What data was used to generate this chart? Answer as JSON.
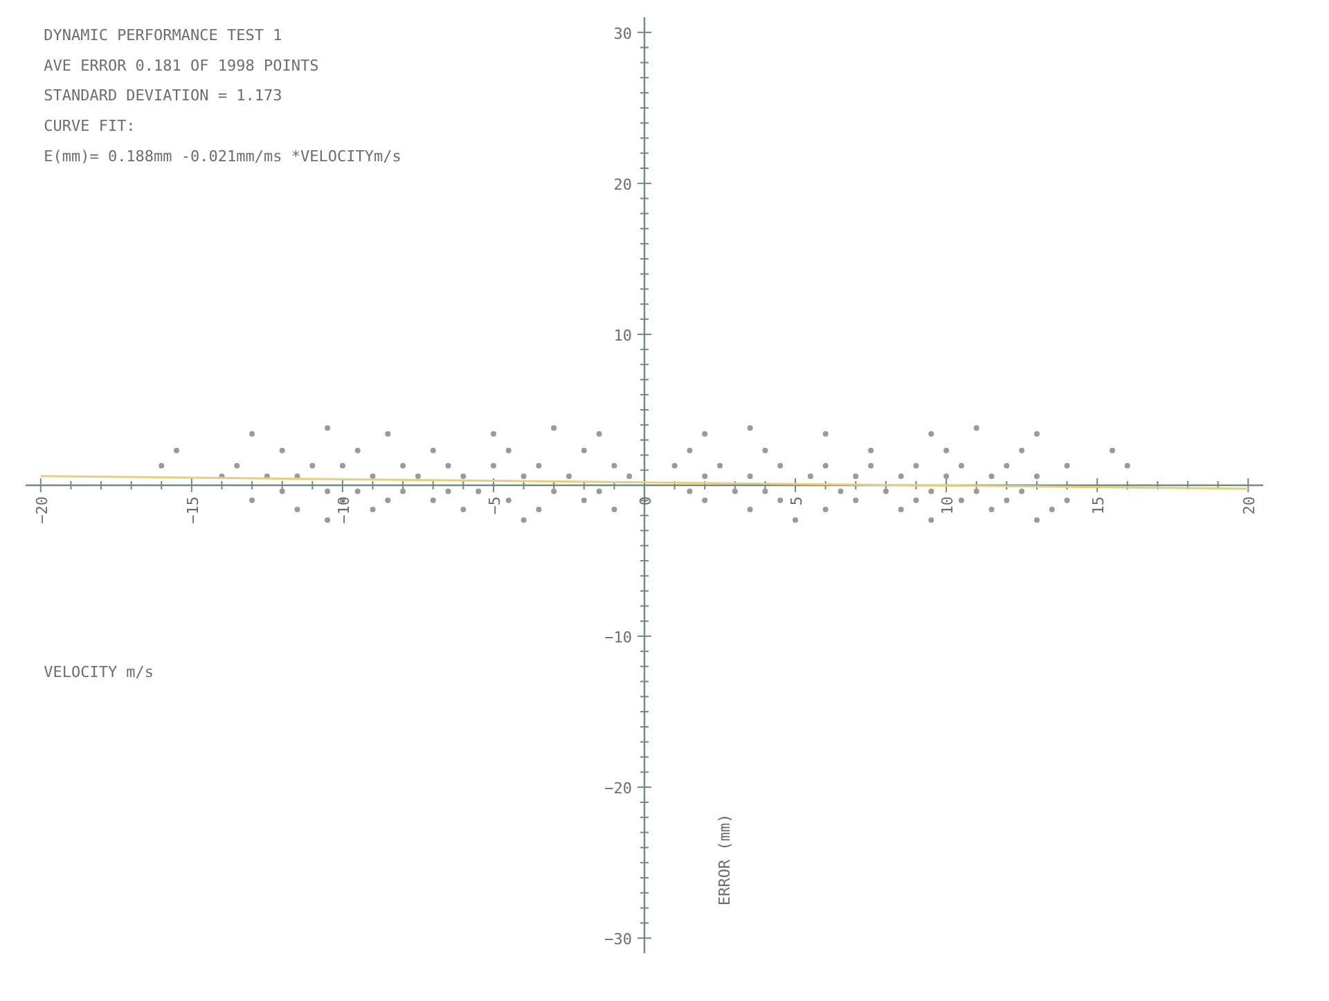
{
  "chart_data": {
    "type": "scatter",
    "title": "DYNAMIC PERFORMANCE TEST 1",
    "annotations": [
      "AVE ERROR  0.181 OF 1998 POINTS",
      "STANDARD DEVIATION = 1.173",
      "CURVE FIT:",
      "E(mm)= 0.188mm -0.021mm/ms  *VELOCITYm/s"
    ],
    "xlabel": "VELOCITY   m/s",
    "ylabel": "ERROR (mm)",
    "xlim": [
      -20.5,
      20.5
    ],
    "ylim": [
      -31,
      31
    ],
    "xticks": [
      -20,
      -15,
      -10,
      -5,
      0,
      5,
      10,
      15,
      20
    ],
    "yticks": [
      -30,
      -20,
      -10,
      {
        "value": 0,
        "label": null
      },
      10,
      20,
      30
    ],
    "grid": false,
    "series": [
      {
        "color": "#9a9a9a",
        "marker": "circle",
        "x": [
          -15.5,
          -12,
          -9.5,
          -7,
          -4.5,
          -2,
          1.5,
          4,
          7.5,
          10,
          12.5,
          15.5,
          -13,
          -8.5,
          -5,
          -1.5,
          2,
          6,
          9.5,
          13,
          -10.5,
          -3,
          3.5,
          11,
          -16,
          -13.5,
          -11,
          -10,
          -8,
          -6.5,
          -5,
          -3.5,
          -1,
          1,
          2.5,
          4.5,
          6,
          7.5,
          9,
          10.5,
          12,
          14,
          16,
          -14,
          -12.5,
          -11.5,
          -9,
          -7.5,
          -6,
          -4,
          -2.5,
          -0.5,
          2,
          3.5,
          5.5,
          7,
          8.5,
          10,
          11.5,
          13,
          -12,
          -10.5,
          -9.5,
          -8,
          -6.5,
          -5.5,
          -3,
          -1.5,
          1.5,
          3,
          4,
          6.5,
          8,
          9.5,
          11,
          12.5,
          -13,
          -10,
          -8.5,
          -7,
          -4.5,
          -2,
          2,
          4.5,
          7,
          9,
          10.5,
          12,
          14,
          -11.5,
          -9,
          -6,
          -3.5,
          -1,
          3.5,
          6,
          8.5,
          11.5,
          13.5,
          -10.5,
          -4,
          5,
          9.5,
          13
        ],
        "values": [
          2.3,
          2.3,
          2.3,
          2.3,
          2.3,
          2.3,
          2.3,
          2.3,
          2.3,
          2.3,
          2.3,
          2.3,
          3.4,
          3.4,
          3.4,
          3.4,
          3.4,
          3.4,
          3.4,
          3.4,
          3.8,
          3.8,
          3.8,
          3.8,
          1.3,
          1.3,
          1.3,
          1.3,
          1.3,
          1.3,
          1.3,
          1.3,
          1.3,
          1.3,
          1.3,
          1.3,
          1.3,
          1.3,
          1.3,
          1.3,
          1.3,
          1.3,
          1.3,
          0.6,
          0.6,
          0.6,
          0.6,
          0.6,
          0.6,
          0.6,
          0.6,
          0.6,
          0.6,
          0.6,
          0.6,
          0.6,
          0.6,
          0.6,
          0.6,
          0.6,
          -0.4,
          -0.4,
          -0.4,
          -0.4,
          -0.4,
          -0.4,
          -0.4,
          -0.4,
          -0.4,
          -0.4,
          -0.4,
          -0.4,
          -0.4,
          -0.4,
          -0.4,
          -0.4,
          -1.0,
          -1.0,
          -1.0,
          -1.0,
          -1.0,
          -1.0,
          -1.0,
          -1.0,
          -1.0,
          -1.0,
          -1.0,
          -1.0,
          -1.0,
          -1.6,
          -1.6,
          -1.6,
          -1.6,
          -1.6,
          -1.6,
          -1.6,
          -1.6,
          -1.6,
          -1.6,
          -2.3,
          -2.3,
          -2.3,
          -2.3,
          -2.3
        ]
      },
      {
        "type": "line",
        "color": "#e6cf7a",
        "x": [
          -20,
          20
        ],
        "values": [
          0.61,
          -0.23
        ]
      }
    ]
  }
}
